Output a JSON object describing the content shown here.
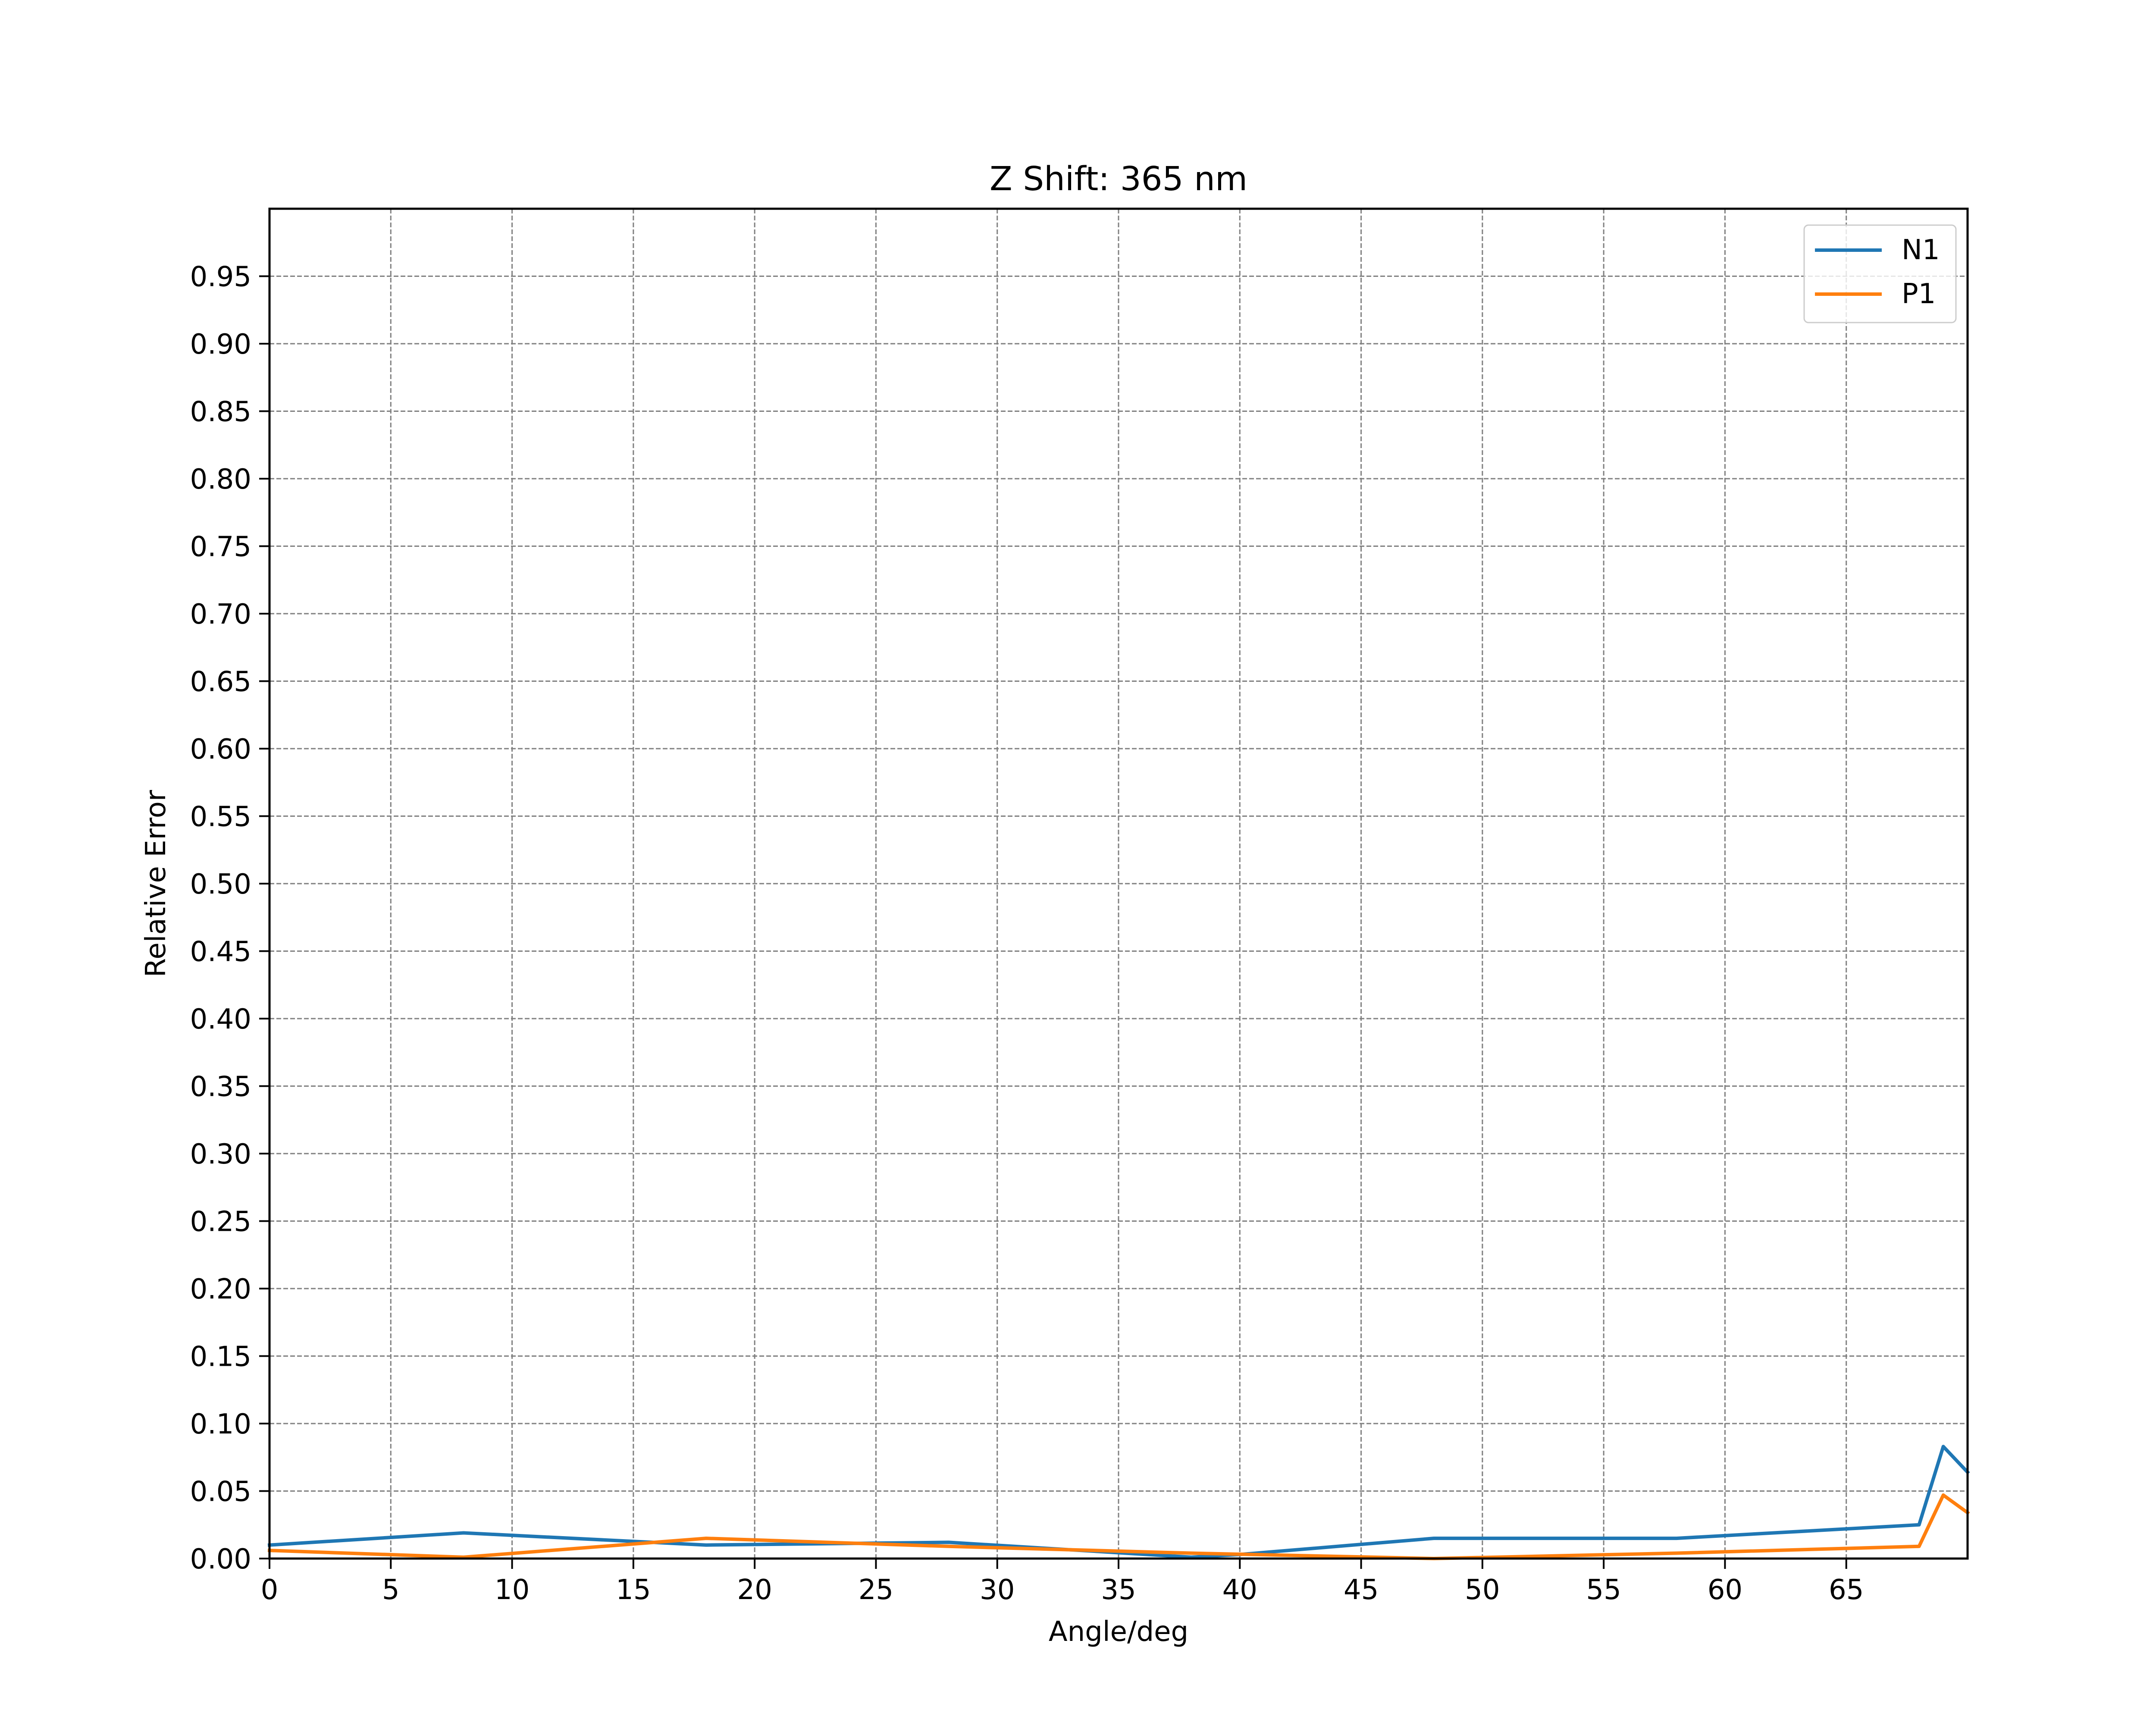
{
  "chart_data": {
    "type": "line",
    "title": "Z Shift: 365 nm",
    "xlabel": "Angle/deg",
    "ylabel": "Relative Error",
    "xlim": [
      0,
      70
    ],
    "ylim": [
      0,
      1.0
    ],
    "x_ticks": [
      0,
      5,
      10,
      15,
      20,
      25,
      30,
      35,
      40,
      45,
      50,
      55,
      60,
      65
    ],
    "x_tick_labels": [
      "0",
      "5",
      "10",
      "15",
      "20",
      "25",
      "30",
      "35",
      "40",
      "45",
      "50",
      "55",
      "60",
      "65"
    ],
    "y_ticks": [
      0,
      0.05,
      0.1,
      0.15,
      0.2,
      0.25,
      0.3,
      0.35,
      0.4,
      0.45,
      0.5,
      0.55,
      0.6,
      0.65,
      0.7,
      0.75,
      0.8,
      0.85,
      0.9,
      0.95
    ],
    "y_tick_labels": [
      "0.00",
      "0.05",
      "0.10",
      "0.15",
      "0.20",
      "0.25",
      "0.30",
      "0.35",
      "0.40",
      "0.45",
      "0.50",
      "0.55",
      "0.60",
      "0.65",
      "0.70",
      "0.75",
      "0.80",
      "0.85",
      "0.90",
      "0.95"
    ],
    "grid": true,
    "legend_position": "top-right",
    "series": [
      {
        "name": "N1",
        "color": "#1f77b4",
        "x": [
          0,
          8,
          18,
          28,
          38,
          40,
          48,
          58,
          68,
          69,
          70
        ],
        "y": [
          0.01,
          0.019,
          0.01,
          0.012,
          0.001,
          0.003,
          0.015,
          0.015,
          0.025,
          0.083,
          0.064
        ]
      },
      {
        "name": "P1",
        "color": "#ff7f0e",
        "x": [
          0,
          8,
          18,
          28,
          38,
          48,
          58,
          68,
          69,
          70
        ],
        "y": [
          0.006,
          0.001,
          0.015,
          0.009,
          0.004,
          0.0,
          0.004,
          0.009,
          0.047,
          0.034
        ]
      }
    ]
  }
}
